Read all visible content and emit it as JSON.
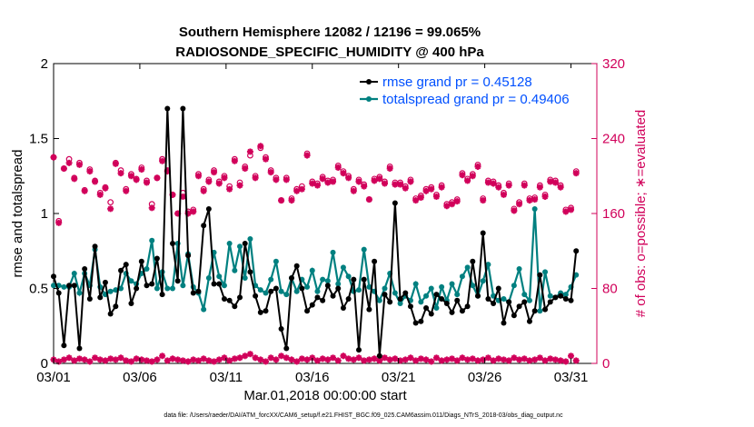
{
  "chart_data": {
    "type": "line",
    "title_line1": "Southern Hemisphere 12082 / 12196 = 99.065%",
    "title_line2": "RADIOSONDE_SPECIFIC_HUMIDITY @ 400 hPa",
    "xlabel": "Mar.01,2018 00:00:00 start",
    "ylabel_left": "rmse and totalspread",
    "ylabel_right": "# of obs: o=possible; ∗=evaluated",
    "ylim_left": [
      0,
      2
    ],
    "ylim_right": [
      0,
      320
    ],
    "xlim": [
      0,
      31.5
    ],
    "left_ticks": [
      "0",
      "0.5",
      "1",
      "1.5",
      "2"
    ],
    "left_tick_values": [
      0,
      0.5,
      1,
      1.5,
      2
    ],
    "right_ticks": [
      "0",
      "80",
      "160",
      "240",
      "320"
    ],
    "right_tick_values": [
      0,
      80,
      160,
      240,
      320
    ],
    "x_ticks": [
      "03/01",
      "03/06",
      "03/11",
      "03/16",
      "03/21",
      "03/26",
      "03/31"
    ],
    "x_tick_values": [
      0,
      5,
      10,
      15,
      20,
      25,
      30
    ],
    "colors": {
      "rmse": "#000000",
      "spread": "#008080",
      "obs": "#d1005a",
      "legend_text": "#0050ff",
      "right_axis": "#d1005a"
    },
    "legend": [
      "rmse grand pr = 0.45128",
      "totalspread grand pr = 0.49406"
    ],
    "series": [
      {
        "name": "rmse",
        "values": [
          0.58,
          0.47,
          0.12,
          0.52,
          0.52,
          0.1,
          0.63,
          0.43,
          0.78,
          0.44,
          0.54,
          0.33,
          0.38,
          0.62,
          0.66,
          0.4,
          0.5,
          0.68,
          0.52,
          0.53,
          0.7,
          0.46,
          1.7,
          0.8,
          0.55,
          1.7,
          0.72,
          0.47,
          0.48,
          0.92,
          1.03,
          0.53,
          0.53,
          0.43,
          0.42,
          0.38,
          0.44,
          0.8,
          0.61,
          0.45,
          0.34,
          0.35,
          0.48,
          0.5,
          0.23,
          0.1,
          0.57,
          0.65,
          0.5,
          0.35,
          0.39,
          0.44,
          0.42,
          0.52,
          0.45,
          0.5,
          0.37,
          0.43,
          0.56,
          0.09,
          0.56,
          0.36,
          0.68,
          0.05,
          0.46,
          0.41,
          1.07,
          0.43,
          0.47,
          0.38,
          0.27,
          0.28,
          0.37,
          0.33,
          0.46,
          0.43,
          0.4,
          0.34,
          0.42,
          0.35,
          0.38,
          0.68,
          0.45,
          0.87,
          0.43,
          0.4,
          0.5,
          0.27,
          0.41,
          0.32,
          0.38,
          0.41,
          0.28,
          0.35,
          0.59,
          0.36,
          0.41,
          0.44,
          0.45,
          0.43,
          0.42,
          0.75
        ]
      },
      {
        "name": "totalspread",
        "values": [
          0.52,
          0.52,
          0.51,
          0.51,
          0.6,
          0.47,
          0.6,
          0.52,
          0.76,
          0.51,
          0.46,
          0.48,
          0.49,
          0.5,
          0.6,
          0.55,
          0.53,
          0.6,
          0.63,
          0.82,
          0.5,
          0.61,
          0.5,
          0.5,
          0.8,
          0.52,
          0.73,
          0.51,
          0.47,
          0.36,
          0.57,
          0.74,
          0.58,
          0.52,
          0.8,
          0.62,
          0.78,
          0.57,
          0.83,
          0.52,
          0.49,
          0.47,
          0.56,
          0.68,
          0.48,
          0.46,
          0.57,
          0.48,
          0.56,
          0.51,
          0.62,
          0.48,
          0.56,
          0.55,
          0.74,
          0.53,
          0.64,
          0.58,
          0.48,
          0.49,
          0.76,
          0.51,
          0.48,
          0.42,
          0.5,
          0.6,
          0.47,
          0.4,
          0.45,
          0.42,
          0.53,
          0.41,
          0.45,
          0.5,
          0.37,
          0.51,
          0.42,
          0.53,
          0.46,
          0.58,
          0.64,
          0.52,
          0.45,
          0.55,
          0.66,
          0.45,
          0.42,
          0.43,
          0.41,
          0.52,
          0.63,
          0.46,
          0.42,
          1.03,
          0.35,
          0.61,
          0.45,
          0.44,
          0.47,
          0.46,
          0.51,
          0.59
        ]
      },
      {
        "name": "obs_possible",
        "values": [
          220,
          152,
          208,
          218,
          198,
          214,
          185,
          207,
          195,
          182,
          188,
          172,
          214,
          206,
          186,
          202,
          197,
          209,
          195,
          170,
          198,
          218,
          206,
          180,
          160,
          182,
          162,
          164,
          202,
          186,
          196,
          206,
          194,
          200,
          189,
          218,
          193,
          210,
          222,
          200,
          230,
          220,
          206,
          198,
          174,
          198,
          176,
          186,
          189,
          224,
          194,
          192,
          199,
          195,
          196,
          211,
          205,
          200,
          186,
          196,
          191,
          175,
          197,
          199,
          194,
          210,
          193,
          193,
          189,
          196,
          176,
          179,
          186,
          188,
          180,
          190,
          170,
          172,
          175,
          203,
          197,
          202,
          212,
          176,
          195,
          194,
          190,
          182,
          192,
          165,
          172,
          192,
          176,
          177,
          190,
          180,
          196,
          195,
          190,
          164,
          166,
          205
        ]
      },
      {
        "name": "obs_evaluated",
        "values": [
          220,
          150,
          208,
          214,
          197,
          212,
          184,
          205,
          194,
          180,
          187,
          165,
          213,
          203,
          184,
          200,
          196,
          207,
          193,
          166,
          198,
          216,
          205,
          180,
          160,
          178,
          160,
          162,
          200,
          184,
          194,
          204,
          192,
          198,
          186,
          216,
          190,
          208,
          226,
          198,
          232,
          218,
          204,
          196,
          174,
          196,
          174,
          184,
          186,
          222,
          192,
          190,
          197,
          193,
          194,
          209,
          203,
          198,
          184,
          194,
          189,
          175,
          195,
          197,
          192,
          208,
          191,
          191,
          187,
          194,
          174,
          177,
          184,
          186,
          178,
          188,
          168,
          170,
          173,
          201,
          195,
          200,
          210,
          174,
          193,
          192,
          188,
          180,
          190,
          163,
          170,
          190,
          174,
          175,
          188,
          178,
          194,
          193,
          188,
          162,
          164,
          203
        ]
      },
      {
        "name": "obs_low",
        "values": [
          4,
          2,
          4,
          6,
          3,
          5,
          4,
          2,
          6,
          4,
          3,
          5,
          4,
          6,
          3,
          2,
          5,
          4,
          3,
          2,
          4,
          8,
          3,
          5,
          4,
          3,
          2,
          4,
          3,
          5,
          3,
          2,
          4,
          6,
          3,
          5,
          6,
          8,
          10,
          6,
          4,
          2,
          6,
          4,
          8,
          6,
          4,
          2,
          5,
          4,
          6,
          3,
          5,
          4,
          6,
          3,
          8,
          5,
          4,
          6,
          3,
          4,
          5,
          3,
          6,
          4,
          5,
          3,
          4,
          6,
          3,
          5,
          4,
          2,
          6,
          3,
          4,
          5,
          3,
          6,
          4,
          5,
          3,
          4,
          6,
          3,
          5,
          4,
          3,
          6,
          4,
          5,
          3,
          4,
          6,
          3,
          5,
          4,
          3,
          2,
          8,
          3
        ]
      }
    ]
  },
  "footer": "data file: /Users/raeder/DAI/ATM_forcXX/CAM6_setup/f.e21.FHIST_BGC.f09_025.CAM6assim.011/Diags_NTrS_2018-03/obs_diag_output.nc"
}
